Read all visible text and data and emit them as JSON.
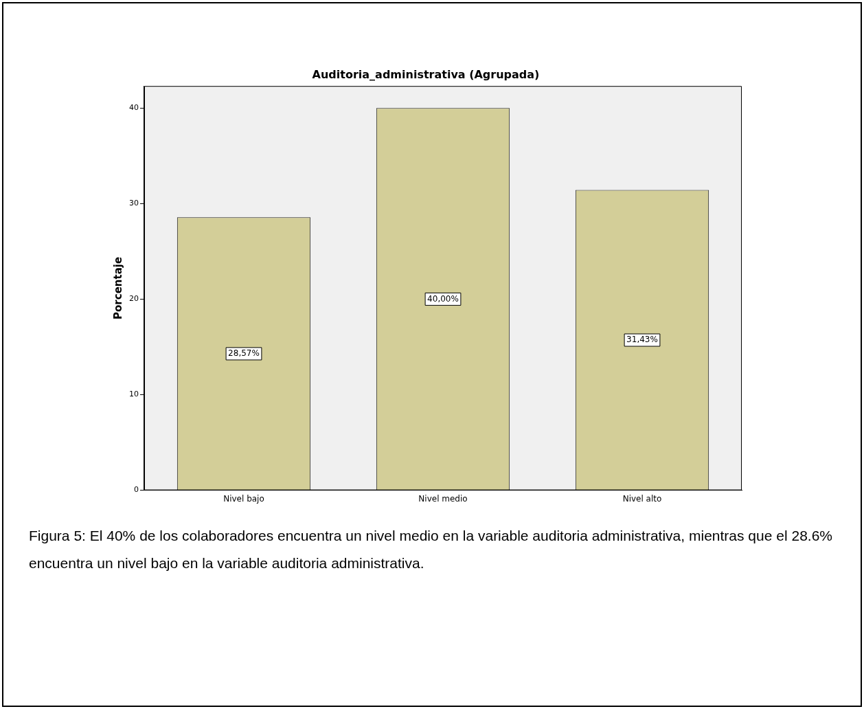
{
  "chart_data": {
    "type": "bar",
    "title": "Auditoria_administrativa (Agrupada)",
    "ylabel": "Porcentaje",
    "categories": [
      "Nivel bajo",
      "Nivel medio",
      "Nivel alto"
    ],
    "values": [
      28.57,
      40.0,
      31.43
    ],
    "value_labels": [
      "28,57%",
      "40,00%",
      "31,43%"
    ],
    "color": "#d3ce98",
    "ylim": [
      0,
      42.3
    ],
    "yticks": [
      0,
      10,
      20,
      30,
      40
    ],
    "grid": false,
    "legend": false,
    "annotations": [
      "Figura 5: El 40% de los colaboradores encuentra un nivel medio en la variable auditoria administrativa, mientras que el 28.6% encuentra un nivel bajo en la variable auditoria administrativa."
    ]
  }
}
